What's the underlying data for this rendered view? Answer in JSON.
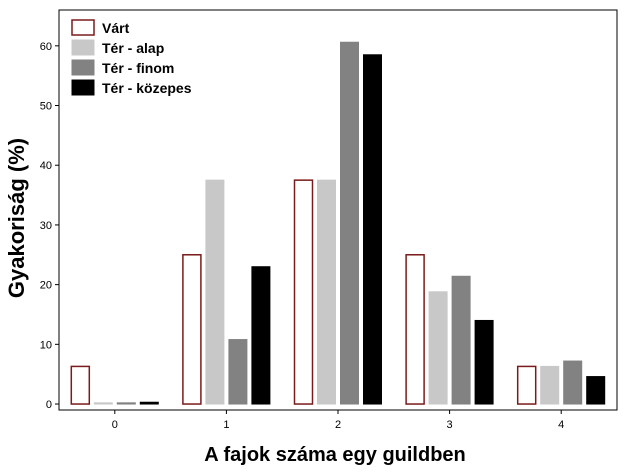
{
  "chart_data": {
    "type": "bar",
    "title": "",
    "xlabel": "A fajok száma egy guildben",
    "ylabel": "Gyakoriság (%)",
    "categories": [
      "0",
      "1",
      "2",
      "3",
      "4"
    ],
    "yticks": [
      "0",
      "10",
      "20",
      "30",
      "40",
      "50",
      "60"
    ],
    "ylim": [
      -1,
      66
    ],
    "grid": false,
    "legend_position": "top-left",
    "series": [
      {
        "name": "Várt",
        "values": [
          6.3,
          25.0,
          37.5,
          25.0,
          6.3
        ],
        "fill": "#ffffff",
        "stroke": "#7a1a1a"
      },
      {
        "name": "Tér - alap",
        "values": [
          0.2,
          37.5,
          37.5,
          18.8,
          6.3
        ],
        "fill": "#c8c8c8",
        "stroke": "#c8c8c8"
      },
      {
        "name": "Tér - finom",
        "values": [
          0.2,
          10.8,
          60.6,
          21.4,
          7.2
        ],
        "fill": "#828282",
        "stroke": "#828282"
      },
      {
        "name": "Tér - közepes",
        "values": [
          0.3,
          23.0,
          58.5,
          14.0,
          4.6
        ],
        "fill": "#000000",
        "stroke": "#000000"
      }
    ]
  }
}
